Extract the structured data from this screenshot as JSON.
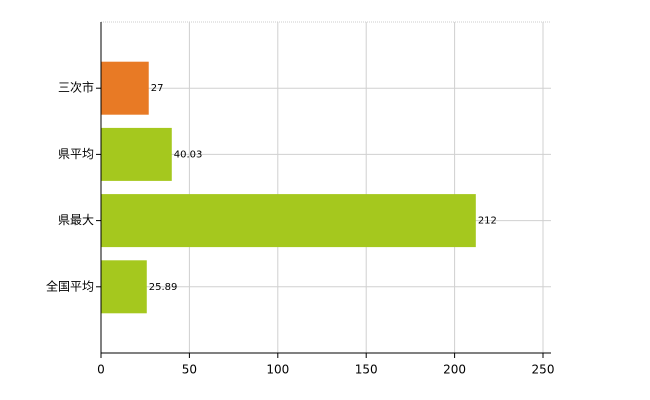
{
  "chart_data": {
    "type": "bar",
    "orientation": "horizontal",
    "categories": [
      "三次市",
      "県平均",
      "県最大",
      "全国平均"
    ],
    "values": [
      27,
      40.03,
      212,
      25.89
    ],
    "colors": [
      "#e87a25",
      "#a5c81e",
      "#a5c81e",
      "#a5c81e"
    ],
    "xlim": [
      0,
      250
    ],
    "xticks": [
      0,
      50,
      100,
      150,
      200,
      250
    ],
    "grid": true
  }
}
